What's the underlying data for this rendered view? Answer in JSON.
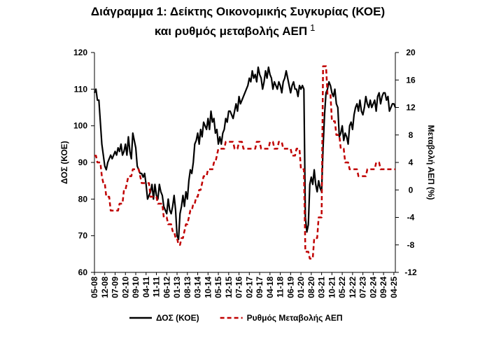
{
  "chart_data": {
    "type": "line",
    "title": [
      "Διάγραμμα 1: Δείκτης Οικονομικής Συγκυρίας (ΚΟΕ)",
      "και ρυθμός μεταβολής ΑΕΠ"
    ],
    "title_note": "1",
    "ylabel": "ΔΟΣ (ΚΟΕ)",
    "y2label": "Μεταβολή ΑΕΠ (%)",
    "ylim": [
      60,
      120
    ],
    "yticks": [
      60,
      70,
      80,
      90,
      100,
      110,
      120
    ],
    "y2lim": [
      -12,
      20
    ],
    "y2ticks": [
      -12,
      -8,
      -4,
      0,
      4,
      8,
      12,
      16,
      20
    ],
    "categories": [
      "05-08",
      null,
      null,
      null,
      null,
      null,
      null,
      "12-08",
      null,
      null,
      null,
      null,
      null,
      null,
      "07-09",
      null,
      null,
      null,
      null,
      null,
      null,
      "02-10",
      null,
      null,
      null,
      null,
      null,
      null,
      "09-10",
      null,
      null,
      null,
      null,
      null,
      null,
      "04-11",
      null,
      null,
      null,
      null,
      null,
      null,
      "11-11",
      null,
      null,
      null,
      null,
      null,
      null,
      "06-12",
      null,
      null,
      null,
      null,
      null,
      null,
      "01-13",
      null,
      null,
      null,
      null,
      null,
      null,
      "08-13",
      null,
      null,
      null,
      null,
      null,
      null,
      "03-14",
      null,
      null,
      null,
      null,
      null,
      null,
      "10-14",
      null,
      null,
      null,
      null,
      null,
      null,
      "05-15",
      null,
      null,
      null,
      null,
      null,
      null,
      "12-15",
      null,
      null,
      null,
      null,
      null,
      null,
      "07-16",
      null,
      null,
      null,
      null,
      null,
      null,
      "02-17",
      null,
      null,
      null,
      null,
      null,
      null,
      "09-17",
      null,
      null,
      null,
      null,
      null,
      null,
      "04-18",
      null,
      null,
      null,
      null,
      null,
      null,
      "11-18",
      null,
      null,
      null,
      null,
      null,
      null,
      "06-19",
      null,
      null,
      null,
      null,
      null,
      null,
      "01-20",
      null,
      null,
      null,
      null,
      null,
      null,
      "08-20",
      null,
      null,
      null,
      null,
      null,
      null,
      "03-21",
      null,
      null,
      null,
      null,
      null,
      null,
      "10-21",
      null,
      null,
      null,
      null,
      null,
      null,
      "05-22",
      null,
      null,
      null,
      null,
      null,
      null,
      "12-22",
      null,
      null,
      null,
      null,
      null,
      null,
      "07-23",
      null,
      null,
      null,
      null,
      null,
      null,
      "02-24",
      null,
      null,
      null,
      null,
      null,
      null,
      "09-24",
      null,
      null,
      null,
      null,
      null,
      null,
      "04-25",
      null
    ],
    "legend": "bottom",
    "series": [
      {
        "name": "ΔΟΣ (ΚΟΕ)",
        "color": "#000000",
        "dash": false,
        "values": [
          109,
          110,
          107,
          107,
          101,
          95,
          92,
          89,
          88,
          90,
          91,
          92,
          91,
          92,
          93,
          92,
          94,
          93,
          95,
          92,
          93,
          95,
          92,
          97,
          93,
          91,
          98,
          96,
          94,
          89,
          88,
          87,
          87,
          86,
          87,
          84,
          80,
          81,
          82,
          84,
          80,
          84,
          81,
          80,
          84,
          82,
          81,
          78,
          77,
          76,
          80,
          77,
          76,
          78,
          81,
          77,
          70,
          69,
          76,
          78,
          81,
          78,
          82,
          80,
          85,
          88,
          87,
          90,
          95,
          96,
          98,
          95,
          99,
          97,
          101,
          100,
          99,
          102,
          99,
          104,
          101,
          102,
          98,
          99,
          95,
          97,
          95,
          98,
          99,
          102,
          101,
          104,
          104,
          103,
          102,
          104,
          106,
          104,
          108,
          106,
          107,
          108,
          109,
          110,
          111,
          113,
          112,
          115,
          113,
          114,
          112,
          116,
          114,
          113,
          110,
          112,
          115,
          113,
          116,
          114,
          113,
          110,
          112,
          111,
          110,
          112,
          111,
          109,
          112,
          113,
          115,
          113,
          111,
          109,
          111,
          112,
          110,
          110,
          108,
          111,
          110,
          111,
          110,
          75,
          71,
          73,
          84,
          86,
          84,
          88,
          84,
          82,
          85,
          83,
          82,
          94,
          103,
          109,
          110,
          112,
          111,
          109,
          108,
          110,
          106,
          105,
          97,
          98,
          100,
          96,
          98,
          97,
          95,
          100,
          101,
          99,
          103,
          105,
          106,
          104,
          107,
          104,
          103,
          105,
          108,
          106,
          105,
          107,
          105,
          106,
          107,
          104,
          108,
          109,
          106,
          108,
          109,
          109,
          107,
          108,
          104,
          105,
          106,
          106,
          105
        ]
      },
      {
        "name": "Ρυθμός Μεταβολής ΑΕΠ",
        "color": "#c00000",
        "dash": true,
        "axis": "y2",
        "values": [
          5,
          5,
          4,
          4,
          4,
          2,
          1,
          1,
          -1,
          -1,
          -1,
          -3,
          -3,
          -3,
          -3,
          -3,
          -3,
          -2,
          -2,
          -2,
          0,
          0,
          1,
          2,
          2,
          2,
          3,
          3,
          3,
          3,
          3,
          2,
          1,
          1,
          1,
          1,
          1,
          1,
          -1,
          -1,
          -1,
          -1,
          -1,
          -2,
          -2,
          -2,
          -2,
          -4,
          -4,
          -4,
          -5,
          -5,
          -5,
          -6,
          -6,
          -7,
          -7,
          -8,
          -8,
          -7,
          -7,
          -6,
          -5,
          -5,
          -4,
          -3,
          -3,
          -2,
          -2,
          -1,
          -1,
          0,
          0,
          1,
          2,
          2,
          2,
          3,
          3,
          3,
          3,
          4,
          4,
          5,
          6,
          6,
          6,
          6,
          6,
          7,
          7,
          7,
          7,
          7,
          7,
          6,
          6,
          6,
          7,
          7,
          7,
          6,
          6,
          6,
          6,
          6,
          6,
          6,
          6,
          6,
          7,
          7,
          7,
          6,
          6,
          6,
          6,
          6,
          6,
          7,
          7,
          7,
          6,
          6,
          6,
          7,
          7,
          7,
          6,
          6,
          6,
          6,
          6,
          6,
          5,
          5,
          5,
          6,
          6,
          6,
          3,
          3,
          3,
          -9,
          -9,
          -9,
          -10,
          -10,
          -10,
          -7,
          -7,
          -7,
          -4,
          -4,
          -4,
          18,
          18,
          18,
          14,
          14,
          14,
          10,
          10,
          10,
          8,
          8,
          8,
          6,
          6,
          6,
          4,
          4,
          4,
          3,
          3,
          3,
          3,
          3,
          3,
          2,
          2,
          2,
          2,
          2,
          2,
          3,
          3,
          3,
          3,
          3,
          3,
          4,
          4,
          4,
          3,
          3,
          3,
          3,
          3,
          3,
          3,
          3,
          3,
          3,
          3
        ]
      }
    ]
  }
}
